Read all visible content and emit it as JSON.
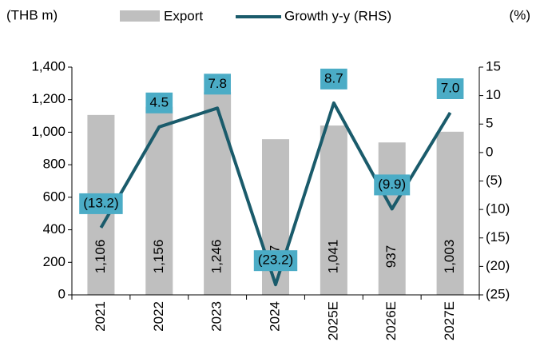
{
  "chart_data": {
    "type": "bar-line",
    "y_label": "(THB m)",
    "y2_label": "(%)",
    "categories": [
      "2021",
      "2022",
      "2023",
      "2024",
      "2025E",
      "2026E",
      "2027E"
    ],
    "series": [
      {
        "name": "Export",
        "type": "bar",
        "color": "#bfbfbf",
        "values": [
          1106,
          1156,
          1246,
          957,
          1041,
          937,
          1003
        ],
        "value_labels": [
          "1,106",
          "1,156",
          "1,246",
          "957",
          "1,041",
          "937",
          "1,003"
        ]
      },
      {
        "name": "Growth y-y (RHS)",
        "type": "line",
        "axis": "y2",
        "color": "#1a5b6b",
        "label_color": "#4bacc6",
        "values": [
          -13.2,
          4.5,
          7.8,
          -23.2,
          8.7,
          -9.9,
          7.0
        ],
        "value_labels": [
          "(13.2)",
          "4.5",
          "7.8",
          "(23.2)",
          "8.7",
          "(9.9)",
          "7.0"
        ]
      }
    ],
    "ylim": [
      0,
      1400
    ],
    "yticks": [
      0,
      200,
      400,
      600,
      800,
      {
        "value": 1000,
        "label": "1,000"
      },
      {
        "value": 1200,
        "label": "1,200"
      },
      {
        "value": 1400,
        "label": "1,400"
      }
    ],
    "y2lim": [
      -25,
      15
    ],
    "y2ticks": [
      {
        "value": -25,
        "label": "(25)"
      },
      {
        "value": -20,
        "label": "(20)"
      },
      {
        "value": -15,
        "label": "(15)"
      },
      {
        "value": -10,
        "label": "(10)"
      },
      {
        "value": -5,
        "label": "(5)"
      },
      0,
      5,
      10,
      15
    ]
  }
}
